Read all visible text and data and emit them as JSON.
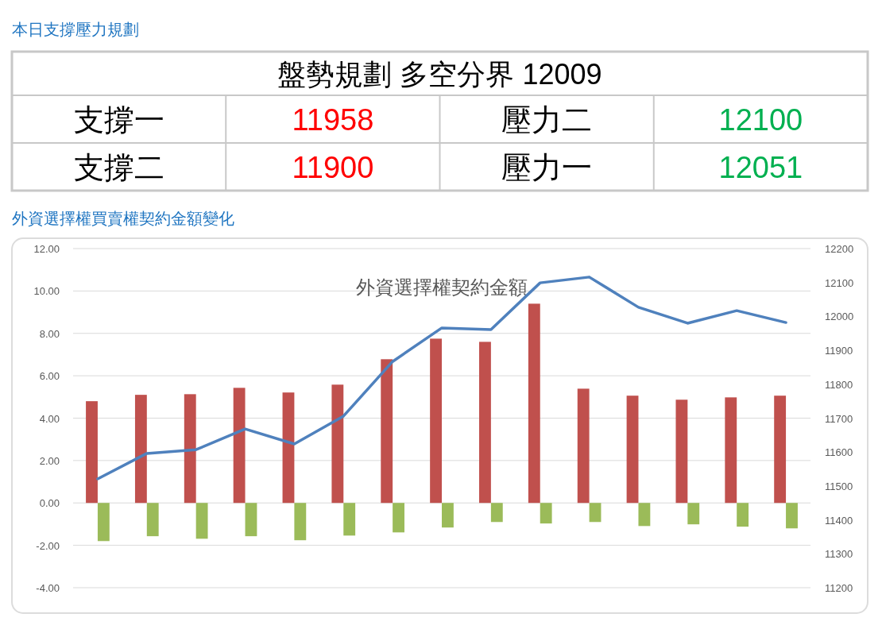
{
  "chart_data": [
    {
      "type": "other",
      "title": "本日支撐壓力規劃",
      "subtitle": "盤勢規劃 多空分界 12009",
      "categories": [
        "支撐一",
        "壓力二",
        "支撐二",
        "壓力一"
      ],
      "values": [
        11958,
        12100,
        11900,
        12051
      ],
      "colors": [
        "#ff0000",
        "#00b050",
        "#ff0000",
        "#00b050"
      ],
      "data_labels": true
    },
    {
      "type": "bar",
      "title": "外資選擇權買賣權契約金額變化",
      "subtitle": "外資選擇權契約金額",
      "categories": [
        null,
        null,
        null,
        null,
        null,
        null,
        null,
        null,
        null,
        null,
        null,
        null,
        null,
        null,
        null
      ],
      "series": [
        {
          "color": "#c0504d",
          "values": [
            4.8,
            5.1,
            5.13,
            5.43,
            5.21,
            5.58,
            6.78,
            7.75,
            7.6,
            9.4,
            5.39,
            5.06,
            4.87,
            4.98,
            5.06
          ]
        },
        {
          "color": "#9bbb59",
          "values": [
            -1.8,
            -1.57,
            -1.69,
            -1.57,
            -1.76,
            -1.54,
            -1.39,
            -1.16,
            -0.9,
            -0.97,
            -0.9,
            -1.09,
            -1.01,
            -1.12,
            -1.2
          ]
        },
        {
          "type": "line",
          "axis": "y2",
          "color": "#4f81bd",
          "values": [
            11521,
            11596,
            11607,
            11668,
            11624,
            11706,
            11867,
            11966,
            11961,
            12099,
            12116,
            12027,
            11980,
            12017,
            11982
          ]
        }
      ],
      "ylim": [
        -4,
        12
      ],
      "yticks": [
        {
          "value": -4,
          "label": "-4.00"
        },
        {
          "value": -2,
          "label": "-2.00"
        },
        {
          "value": 0,
          "label": "0.00"
        },
        {
          "value": 2,
          "label": "2.00"
        },
        {
          "value": 4,
          "label": "4.00"
        },
        {
          "value": 6,
          "label": "6.00"
        },
        {
          "value": 8,
          "label": "8.00"
        },
        {
          "value": 10,
          "label": "10.00"
        },
        {
          "value": 12,
          "label": "12.00"
        }
      ],
      "y2lim": [
        11200,
        12200
      ],
      "y2ticks": [
        11200,
        11300,
        11400,
        11500,
        11600,
        11700,
        11800,
        11900,
        12000,
        12100,
        12200
      ],
      "grid": "y"
    }
  ]
}
